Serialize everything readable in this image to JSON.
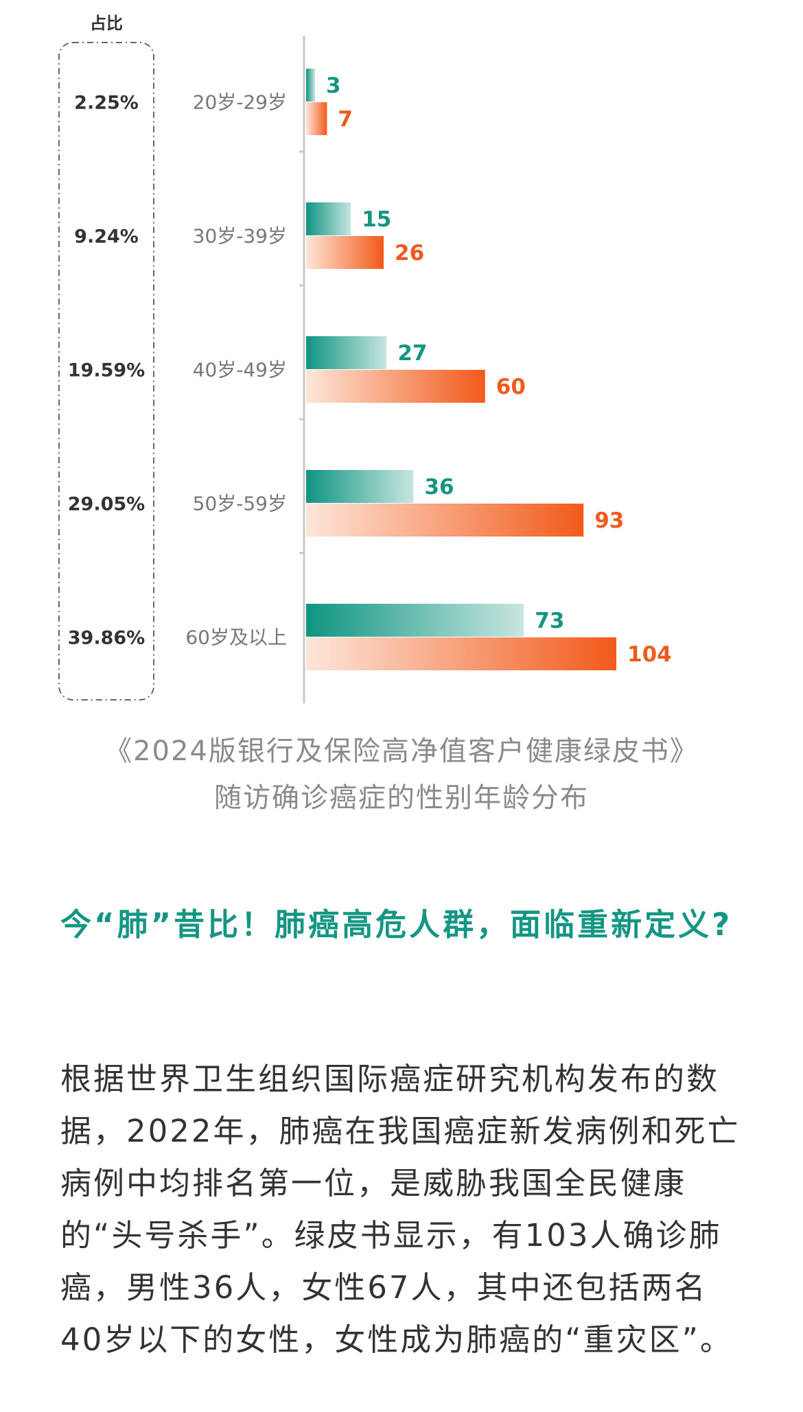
{
  "chart_data": {
    "type": "bar",
    "orientation": "horizontal",
    "share_header": "占比",
    "categories": [
      "20岁-29岁",
      "30岁-39岁",
      "40岁-49岁",
      "50岁-59岁",
      "60岁及以上"
    ],
    "shares": [
      "2.25%",
      "9.24%",
      "19.59%",
      "29.05%",
      "39.86%"
    ],
    "series": [
      {
        "values": [
          3,
          15,
          27,
          36,
          73
        ],
        "color": "#14957f"
      },
      {
        "values": [
          7,
          26,
          60,
          93,
          104
        ],
        "color": "#f05a1e"
      }
    ],
    "xlim": [
      0,
      104
    ],
    "grid": false,
    "legend": false
  },
  "caption": {
    "line1": "《2024版银行及保险高净值客户健康绿皮书》",
    "line2": "随访确诊癌症的性别年龄分布"
  },
  "article": {
    "heading": "今“肺”昔比！肺癌高危人群，面临重新定义?",
    "paragraph": "根据世界卫生组织国际癌症研究机构发布的数据，2022年，肺癌在我国癌症新发病例和死亡病例中均排名第一位，是威胁我国全民健康的“头号杀手”。绿皮书显示，有103人确诊肺癌，男性36人，女性67人，其中还包括两名40岁以下的女性，女性成为肺癌的“重灾区”。"
  }
}
